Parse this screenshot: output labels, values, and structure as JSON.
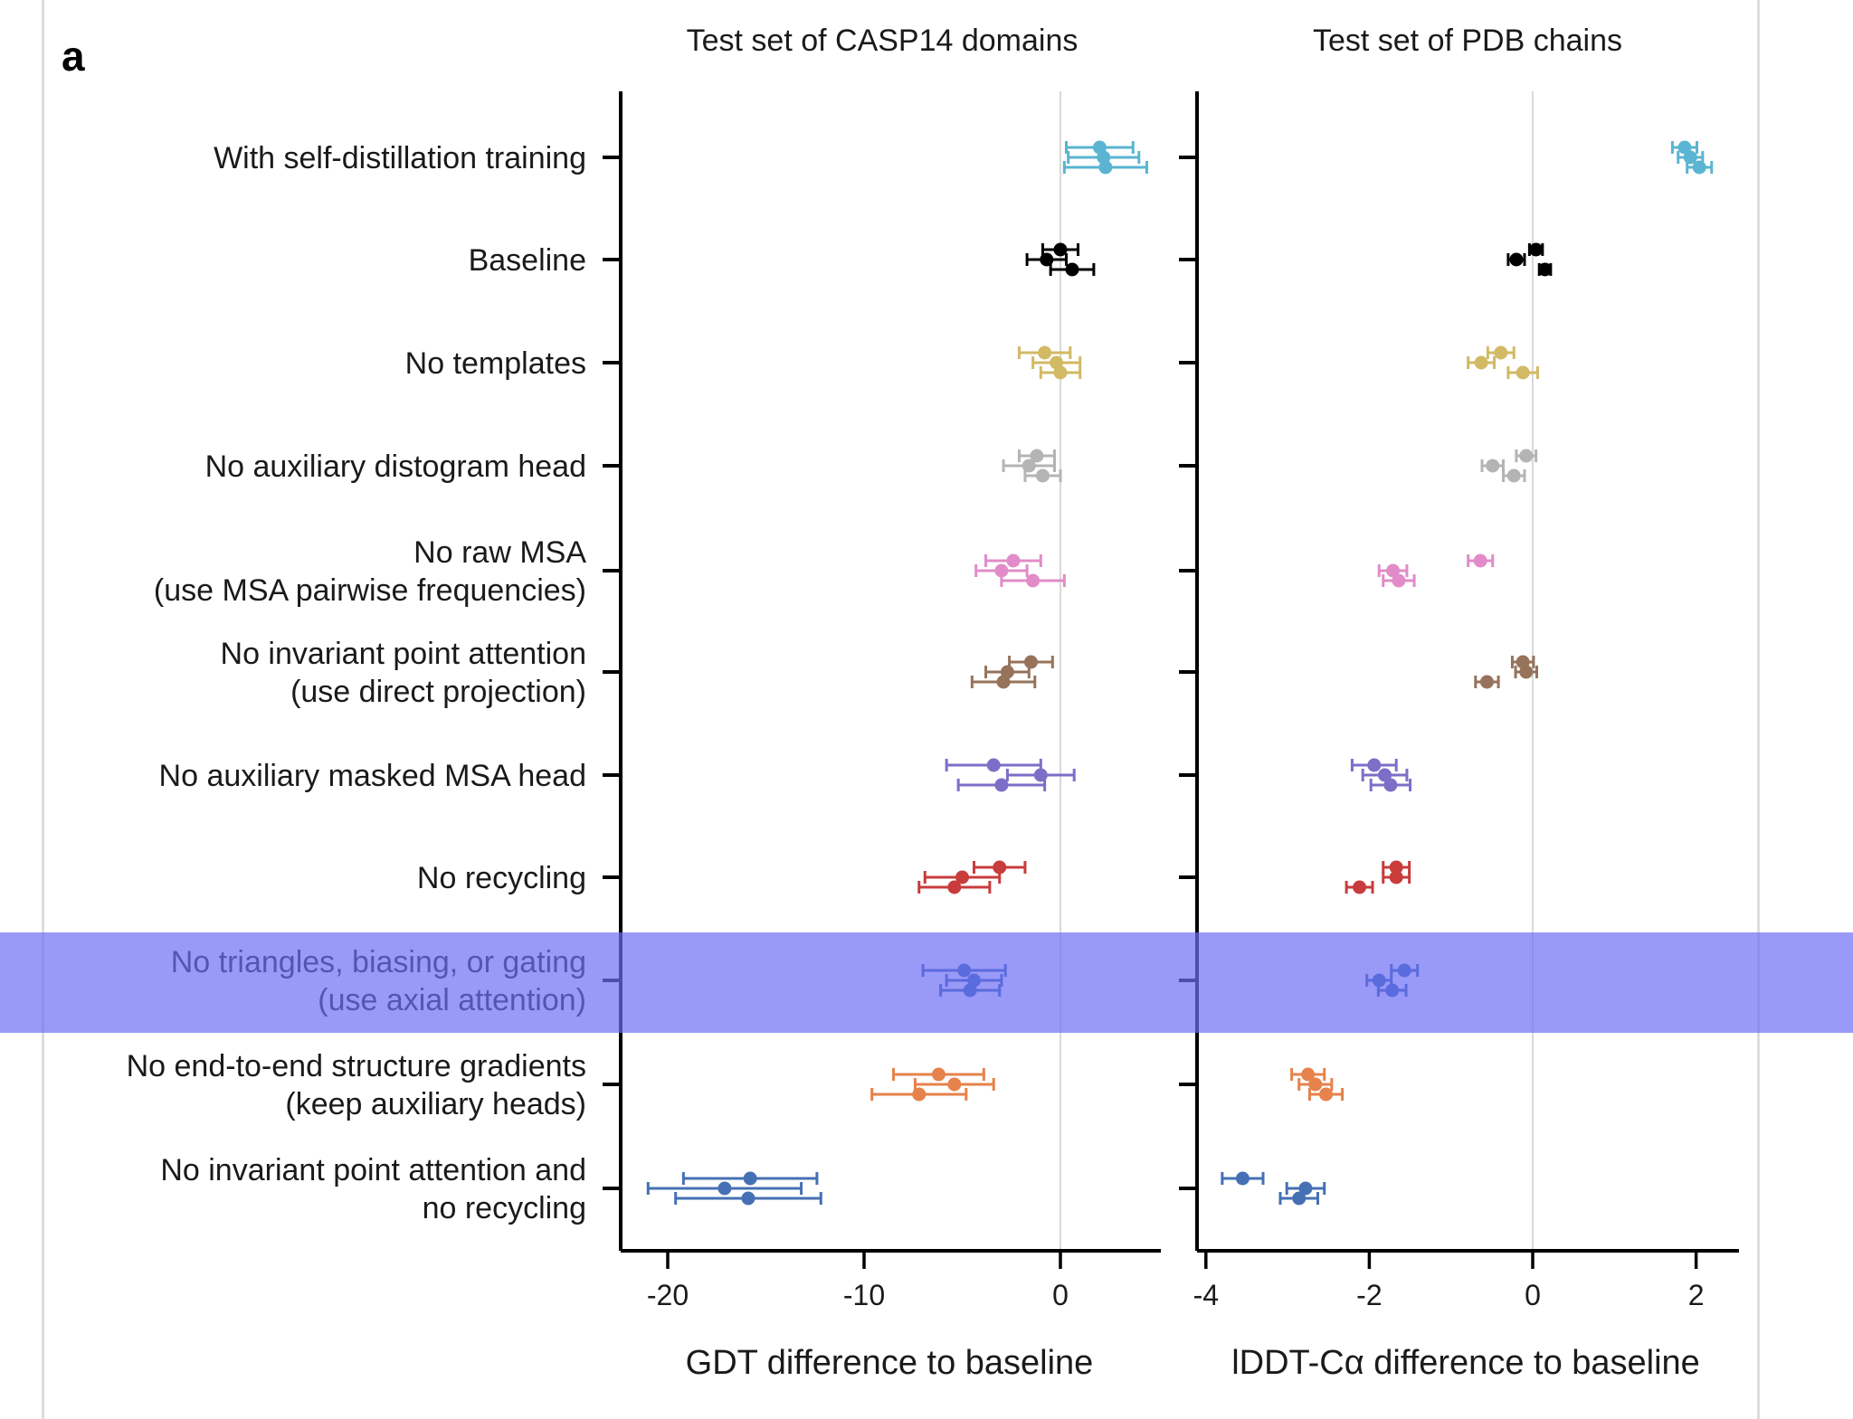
{
  "figure": {
    "panel_letter": "a",
    "highlighted_row": "No triangles, biasing, or gating (use axial attention)",
    "highlight_color": "#6e6ef5"
  },
  "chart_data": [
    {
      "type": "scatter",
      "subtype": "dot-with-horizontal-error-bars",
      "title": "Test set of CASP14 domains",
      "xlabel": "GDT difference to baseline",
      "ylabel": "",
      "xlim": [
        -22.5,
        5.0
      ],
      "xticks": [
        -20,
        -10,
        0
      ],
      "xtick_labels": [
        "-20",
        "-10",
        "0"
      ],
      "reference_line_x": 0,
      "grid": false,
      "legend": "none",
      "categories": [
        {
          "label": [
            "With self-distillation training"
          ],
          "color": "#5ab4d2",
          "points": [
            {
              "x": 2.0,
              "err": 1.7
            },
            {
              "x": 2.2,
              "err": 1.8
            },
            {
              "x": 2.3,
              "err": 2.1
            }
          ]
        },
        {
          "label": [
            "Baseline"
          ],
          "color": "#000000",
          "points": [
            {
              "x": 0.0,
              "err": 0.9
            },
            {
              "x": -0.7,
              "err": 1.0
            },
            {
              "x": 0.6,
              "err": 1.1
            }
          ]
        },
        {
          "label": [
            "No templates"
          ],
          "color": "#d2b964",
          "points": [
            {
              "x": -0.8,
              "err": 1.3
            },
            {
              "x": -0.2,
              "err": 1.2
            },
            {
              "x": 0.0,
              "err": 1.0
            }
          ]
        },
        {
          "label": [
            "No auxiliary distogram head"
          ],
          "color": "#b4b4b4",
          "points": [
            {
              "x": -1.2,
              "err": 0.9
            },
            {
              "x": -1.6,
              "err": 1.3
            },
            {
              "x": -0.9,
              "err": 0.9
            }
          ]
        },
        {
          "label": [
            "No raw MSA ",
            "(use MSA pairwise frequencies)"
          ],
          "color": "#e18cc8",
          "points": [
            {
              "x": -2.4,
              "err": 1.4
            },
            {
              "x": -3.0,
              "err": 1.3
            },
            {
              "x": -1.4,
              "err": 1.6
            }
          ]
        },
        {
          "label": [
            "No invariant point attention ",
            "(use direct projection)"
          ],
          "color": "#96735a",
          "points": [
            {
              "x": -1.5,
              "err": 1.1
            },
            {
              "x": -2.7,
              "err": 1.1
            },
            {
              "x": -2.9,
              "err": 1.6
            }
          ]
        },
        {
          "label": [
            "No auxiliary masked MSA head"
          ],
          "color": "#7d6ec8",
          "points": [
            {
              "x": -3.4,
              "err": 2.4
            },
            {
              "x": -1.0,
              "err": 1.7
            },
            {
              "x": -3.0,
              "err": 2.2
            }
          ]
        },
        {
          "label": [
            "No recycling"
          ],
          "color": "#c83c3c",
          "points": [
            {
              "x": -3.1,
              "err": 1.3
            },
            {
              "x": -5.0,
              "err": 1.9
            },
            {
              "x": -5.4,
              "err": 1.8
            }
          ]
        },
        {
          "label": [
            "No triangles, biasing, or gating",
            "(use axial attention)"
          ],
          "color": "#2d64a5",
          "points": [
            {
              "x": -4.9,
              "err": 2.1
            },
            {
              "x": -4.4,
              "err": 1.4
            },
            {
              "x": -4.6,
              "err": 1.5
            }
          ]
        },
        {
          "label": [
            "No end-to-end structure gradients",
            "(keep auxiliary heads)"
          ],
          "color": "#e6824b",
          "points": [
            {
              "x": -6.2,
              "err": 2.3
            },
            {
              "x": -5.4,
              "err": 2.0
            },
            {
              "x": -7.2,
              "err": 2.4
            }
          ]
        },
        {
          "label": [
            "No invariant point attention and",
            "no recycling"
          ],
          "color": "#4670b4",
          "points": [
            {
              "x": -15.8,
              "err": 3.4
            },
            {
              "x": -17.1,
              "err": 3.9
            },
            {
              "x": -15.9,
              "err": 3.7
            }
          ]
        }
      ]
    },
    {
      "type": "scatter",
      "subtype": "dot-with-horizontal-error-bars",
      "title": "Test set of PDB chains",
      "xlabel": "lDDT-Cα difference to baseline",
      "ylabel": "",
      "xlim": [
        -4.1,
        2.5
      ],
      "xticks": [
        -4,
        -2,
        0,
        2
      ],
      "xtick_labels": [
        "-4",
        "-2",
        "0",
        "2"
      ],
      "reference_line_x": 0,
      "grid": false,
      "legend": "none",
      "categories": [
        {
          "label": [
            "With self-distillation training"
          ],
          "color": "#5ab4d2",
          "points": [
            {
              "x": 1.86,
              "err": 0.15
            },
            {
              "x": 1.93,
              "err": 0.15
            },
            {
              "x": 2.04,
              "err": 0.15
            }
          ]
        },
        {
          "label": [
            "Baseline"
          ],
          "color": "#000000",
          "points": [
            {
              "x": 0.04,
              "err": 0.08
            },
            {
              "x": -0.2,
              "err": 0.1
            },
            {
              "x": 0.15,
              "err": 0.07
            }
          ]
        },
        {
          "label": [
            "No templates"
          ],
          "color": "#d2b964",
          "points": [
            {
              "x": -0.39,
              "err": 0.16
            },
            {
              "x": -0.63,
              "err": 0.16
            },
            {
              "x": -0.12,
              "err": 0.18
            }
          ]
        },
        {
          "label": [
            "No auxiliary distogram head"
          ],
          "color": "#b4b4b4",
          "points": [
            {
              "x": -0.08,
              "err": 0.12
            },
            {
              "x": -0.49,
              "err": 0.13
            },
            {
              "x": -0.23,
              "err": 0.13
            }
          ]
        },
        {
          "label": [
            "No raw MSA ",
            "(use MSA pairwise frequencies)"
          ],
          "color": "#e18cc8",
          "points": [
            {
              "x": -0.64,
              "err": 0.15
            },
            {
              "x": -1.71,
              "err": 0.17
            },
            {
              "x": -1.64,
              "err": 0.19
            }
          ]
        },
        {
          "label": [
            "No invariant point attention ",
            "(use direct projection)"
          ],
          "color": "#96735a",
          "points": [
            {
              "x": -0.12,
              "err": 0.13
            },
            {
              "x": -0.08,
              "err": 0.13
            },
            {
              "x": -0.56,
              "err": 0.14
            }
          ]
        },
        {
          "label": [
            "No auxiliary masked MSA head"
          ],
          "color": "#7d6ec8",
          "points": [
            {
              "x": -1.94,
              "err": 0.27
            },
            {
              "x": -1.81,
              "err": 0.27
            },
            {
              "x": -1.74,
              "err": 0.24
            }
          ]
        },
        {
          "label": [
            "No recycling"
          ],
          "color": "#c83c3c",
          "points": [
            {
              "x": -1.67,
              "err": 0.16
            },
            {
              "x": -1.67,
              "err": 0.16
            },
            {
              "x": -2.12,
              "err": 0.16
            }
          ]
        },
        {
          "label": [
            "No triangles, biasing, or gating",
            "(use axial attention)"
          ],
          "color": "#2d64a5",
          "points": [
            {
              "x": -1.57,
              "err": 0.16
            },
            {
              "x": -1.88,
              "err": 0.15
            },
            {
              "x": -1.72,
              "err": 0.17
            }
          ]
        },
        {
          "label": [
            "No end-to-end structure gradients",
            "(keep auxiliary heads)"
          ],
          "color": "#e6824b",
          "points": [
            {
              "x": -2.75,
              "err": 0.2
            },
            {
              "x": -2.66,
              "err": 0.2
            },
            {
              "x": -2.53,
              "err": 0.2
            }
          ]
        },
        {
          "label": [
            "No invariant point attention and",
            "no recycling"
          ],
          "color": "#4670b4",
          "points": [
            {
              "x": -3.55,
              "err": 0.25
            },
            {
              "x": -2.78,
              "err": 0.23
            },
            {
              "x": -2.86,
              "err": 0.23
            }
          ]
        }
      ]
    }
  ]
}
